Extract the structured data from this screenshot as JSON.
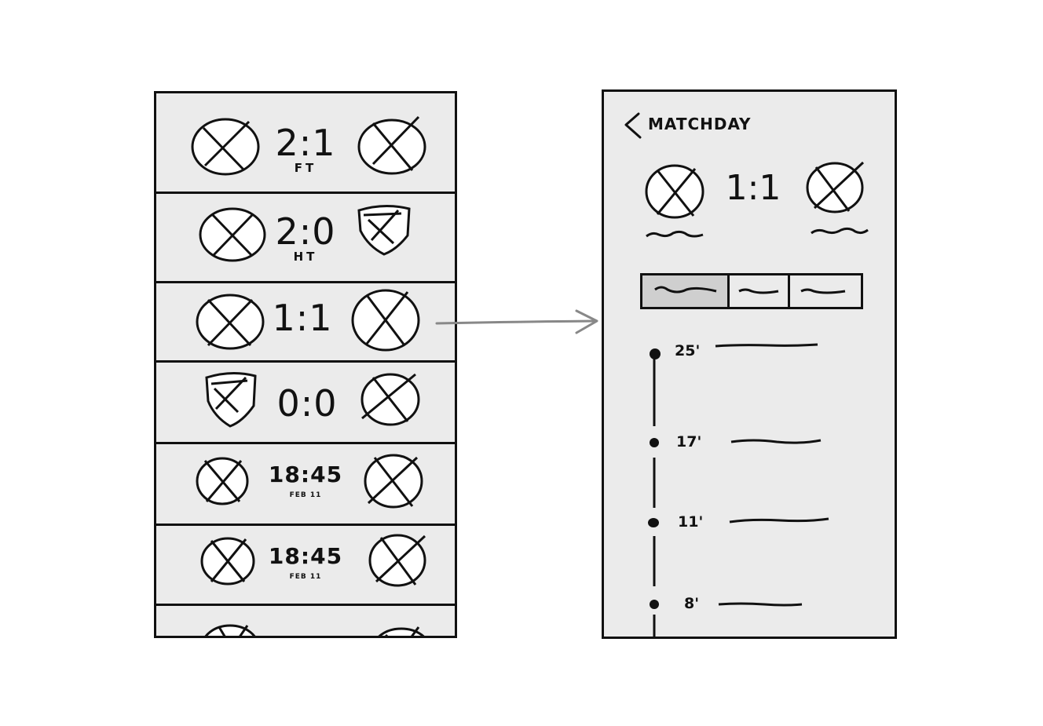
{
  "match_list": {
    "rows": [
      {
        "score": "2:1",
        "status": "FT",
        "home_crest": "round-crest-icon",
        "away_crest": "round-crest-icon"
      },
      {
        "score": "2:0",
        "status": "HT",
        "home_crest": "round-crest-icon",
        "away_crest": "shield-crest-icon"
      },
      {
        "score": "1:1",
        "status": "",
        "home_crest": "round-crest-icon",
        "away_crest": "round-crest-icon"
      },
      {
        "score": "0:0",
        "status": "",
        "home_crest": "shield-crest-icon",
        "away_crest": "round-crest-icon"
      },
      {
        "score": "18:45",
        "status": "FEB 11",
        "home_crest": "round-crest-icon",
        "away_crest": "round-crest-icon"
      },
      {
        "score": "18:45",
        "status": "FEB 11",
        "home_crest": "round-crest-icon",
        "away_crest": "round-crest-icon"
      }
    ]
  },
  "match_detail": {
    "back_label": "MATCHDAY",
    "score": "1:1",
    "tabs_count_note": "",
    "events": [
      {
        "minute": "25'"
      },
      {
        "minute": "17'"
      },
      {
        "minute": "11'"
      },
      {
        "minute": "8'"
      }
    ]
  },
  "colors": {
    "ink": "#111111",
    "screen": "#ebebeb",
    "active_tab": "#cfcfcf",
    "arrow": "#888888"
  }
}
